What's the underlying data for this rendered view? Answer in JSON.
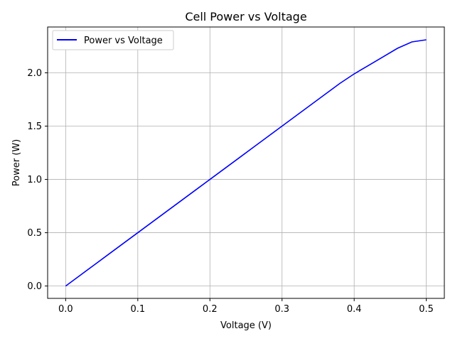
{
  "chart_data": {
    "type": "line",
    "title": "Cell Power vs Voltage",
    "xlabel": "Voltage (V)",
    "ylabel": "Power (W)",
    "xlim": [
      -0.025,
      0.525
    ],
    "ylim": [
      -0.116,
      2.43
    ],
    "xticks": [
      0.0,
      0.1,
      0.2,
      0.3,
      0.4,
      0.5
    ],
    "xtick_labels": [
      "0.0",
      "0.1",
      "0.2",
      "0.3",
      "0.4",
      "0.5"
    ],
    "yticks": [
      0.0,
      0.5,
      1.0,
      1.5,
      2.0
    ],
    "ytick_labels": [
      "0.0",
      "0.5",
      "1.0",
      "1.5",
      "2.0"
    ],
    "grid": true,
    "legend_position": "top-left",
    "series": [
      {
        "name": "Power vs Voltage",
        "color": "#0000ff",
        "x": [
          0.0,
          0.02,
          0.04,
          0.06,
          0.08,
          0.1,
          0.12,
          0.14,
          0.16,
          0.18,
          0.2,
          0.22,
          0.24,
          0.26,
          0.28,
          0.3,
          0.32,
          0.34,
          0.36,
          0.38,
          0.4,
          0.42,
          0.44,
          0.46,
          0.48,
          0.5
        ],
        "y": [
          0.0,
          0.1,
          0.2,
          0.3,
          0.4,
          0.5,
          0.6,
          0.7,
          0.8,
          0.9,
          1.0,
          1.1,
          1.2,
          1.3,
          1.4,
          1.5,
          1.6,
          1.7,
          1.8,
          1.9,
          1.99,
          2.07,
          2.15,
          2.23,
          2.29,
          2.31
        ]
      }
    ]
  }
}
